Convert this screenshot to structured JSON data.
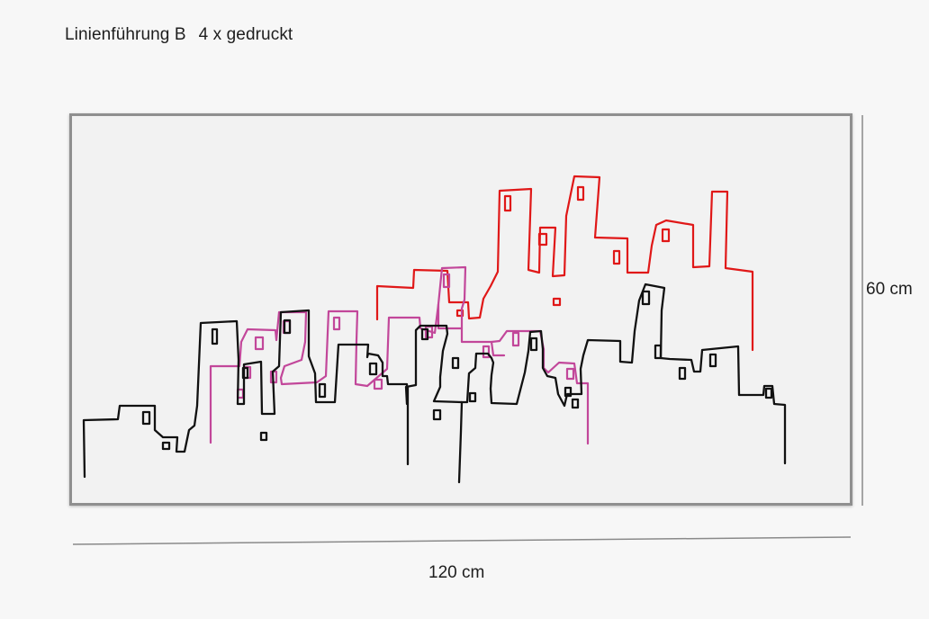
{
  "header": {
    "title_main": "Linienführung B",
    "title_detail": "4 x gedruckt"
  },
  "dimensions": {
    "height_label": "60 cm",
    "width_label": "120 cm"
  },
  "colors": {
    "background": "#f7f7f7",
    "canvas": "#f2f2f2",
    "frame": "#8f8f8f",
    "black_line": "#111111",
    "magenta_line": "#c2479a",
    "red_line": "#e01818",
    "dimension_line": "#8a8a8a"
  },
  "layers": [
    {
      "id": "black-skyline",
      "color": "#111111"
    },
    {
      "id": "magenta-skyline",
      "color": "#c2479a"
    },
    {
      "id": "red-skyline",
      "color": "#e01818"
    }
  ]
}
